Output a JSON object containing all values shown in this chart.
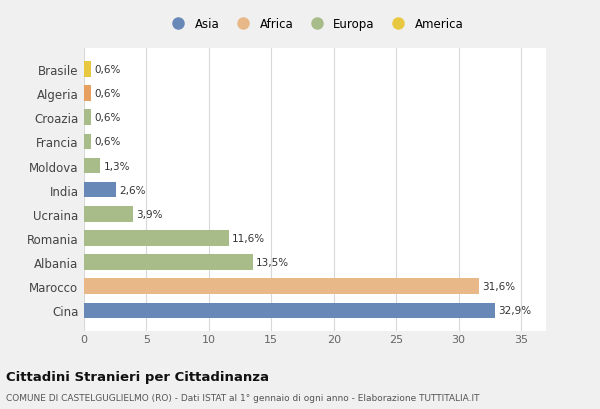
{
  "categories": [
    "Brasile",
    "Algeria",
    "Croazia",
    "Francia",
    "Moldova",
    "India",
    "Ucraina",
    "Romania",
    "Albania",
    "Marocco",
    "Cina"
  ],
  "values": [
    0.6,
    0.6,
    0.6,
    0.6,
    1.3,
    2.6,
    3.9,
    11.6,
    13.5,
    31.6,
    32.9
  ],
  "colors": [
    "#e8c840",
    "#e8a060",
    "#a8bc8a",
    "#a8bc8a",
    "#a8bc8a",
    "#6888b8",
    "#a8bc8a",
    "#a8bc8a",
    "#a8bc8a",
    "#e8b888",
    "#6888b8"
  ],
  "labels": [
    "0,6%",
    "0,6%",
    "0,6%",
    "0,6%",
    "1,3%",
    "2,6%",
    "3,9%",
    "11,6%",
    "13,5%",
    "31,6%",
    "32,9%"
  ],
  "legend_labels": [
    "Asia",
    "Africa",
    "Europa",
    "America"
  ],
  "legend_colors": [
    "#6888b8",
    "#e8b888",
    "#a8bc8a",
    "#e8c840"
  ],
  "title": "Cittadini Stranieri per Cittadinanza",
  "subtitle": "COMUNE DI CASTELGUGLIELMO (RO) - Dati ISTAT al 1° gennaio di ogni anno - Elaborazione TUTTITALIA.IT",
  "xlabel_ticks": [
    0,
    5,
    10,
    15,
    20,
    25,
    30,
    35
  ],
  "xlim": [
    0,
    37
  ],
  "background_color": "#f0f0f0",
  "bar_background": "#ffffff",
  "grid_color": "#d8d8d8"
}
